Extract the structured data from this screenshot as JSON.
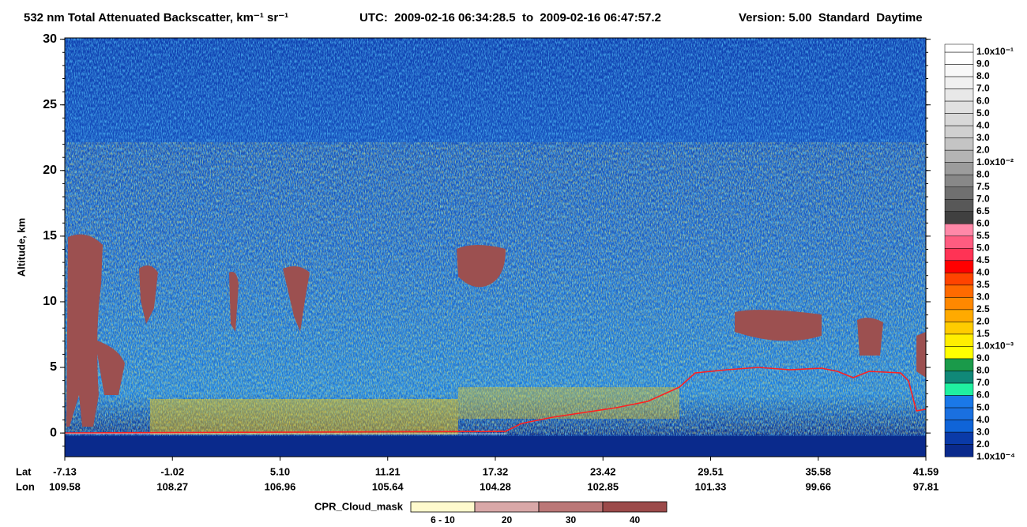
{
  "chart_data": {
    "type": "heatmap",
    "title": "532 nm Total Attenuated Backscatter, km⁻¹ sr⁻¹",
    "time_range": "UTC:  2009-02-16 06:34:28.5  to  2009-02-16 06:47:57.2",
    "version": "Version: 5.00  Standard  Daytime",
    "y_label": "Altitude, km",
    "ylim": [
      -1.8,
      30.1
    ],
    "yticks": [
      0,
      5,
      10,
      15,
      20,
      25,
      30
    ],
    "x_row_labels": [
      "Lat",
      "Lon"
    ],
    "lat_labels": [
      "-7.13",
      "-1.02",
      "5.10",
      "11.21",
      "17.32",
      "23.42",
      "29.51",
      "35.58",
      "41.59"
    ],
    "lon_labels": [
      "109.58",
      "108.27",
      "106.96",
      "105.64",
      "104.28",
      "102.85",
      "101.33",
      "99.66",
      "97.81"
    ],
    "colorbar": {
      "labels": [
        "1.0x10⁻¹",
        "9.0",
        "8.0",
        "7.0",
        "6.0",
        "5.0",
        "4.0",
        "3.0",
        "2.0",
        "1.0x10⁻²",
        "8.0",
        "7.5",
        "7.0",
        "6.5",
        "6.0",
        "5.5",
        "5.0",
        "4.5",
        "4.0",
        "3.5",
        "3.0",
        "2.5",
        "2.0",
        "1.5",
        "1.0x10⁻³",
        "9.0",
        "8.0",
        "7.0",
        "6.0",
        "5.0",
        "4.0",
        "3.0",
        "2.0",
        "1.0x10⁻⁴"
      ],
      "colors": [
        "#ffffff",
        "#f8f8f8",
        "#f0f0f0",
        "#e8e8e8",
        "#e0e0e0",
        "#d8d8d8",
        "#d0d0d0",
        "#c4c4c4",
        "#b4b4b4",
        "#9c9c9c",
        "#888888",
        "#707070",
        "#585858",
        "#404040",
        "#ff88a8",
        "#ff5c80",
        "#ff3355",
        "#ff0000",
        "#ff4400",
        "#ff6a00",
        "#ff8800",
        "#ffaa00",
        "#ffcc00",
        "#ffee00",
        "#ffff00",
        "#1a9a4a",
        "#108878",
        "#20f0a0",
        "#1a78e8",
        "#1a70e0",
        "#0f64d8",
        "#0a3aa8",
        "#0a2a8c"
      ]
    },
    "cloud_mask": {
      "title": "CPR_Cloud_mask",
      "labels": [
        "6 - 10",
        "20",
        "30",
        "40"
      ],
      "colors": [
        "#fffacd",
        "#d9a8a8",
        "#bb7777",
        "#9c4a4a"
      ]
    }
  }
}
